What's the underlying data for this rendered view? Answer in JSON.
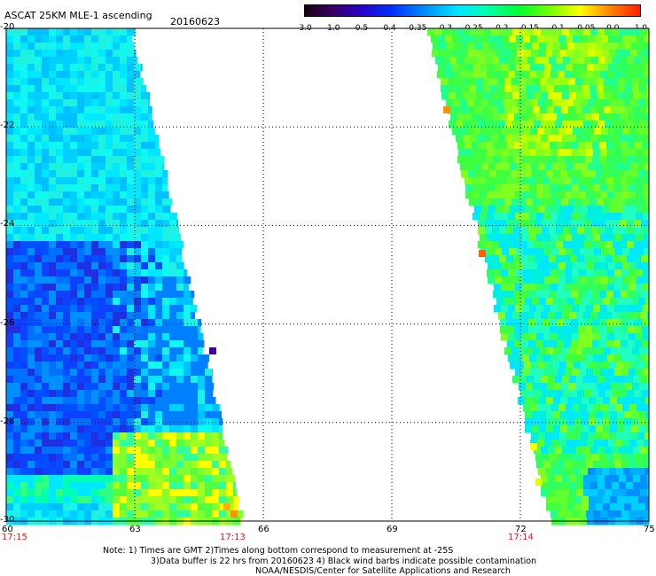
{
  "header": {
    "title": "ASCAT 25KM MLE-1 ascending",
    "date": "20160623"
  },
  "colorbar": {
    "ticks": [
      "-3.0",
      "-1.0",
      "-0.5",
      "-0.4",
      "-0.35",
      "-0.3",
      "-0.25",
      "-0.2",
      "-0.15",
      "-0.1",
      "-0.05",
      "0.0",
      "1.0"
    ],
    "colors": [
      "#1a0010",
      "#3a0060",
      "#2a00c0",
      "#0030ff",
      "#0090ff",
      "#00e8ff",
      "#00ffb0",
      "#00ff30",
      "#80ff00",
      "#ffff00",
      "#ff9000",
      "#ff2000"
    ]
  },
  "axes": {
    "y_labels": [
      "-20",
      "-22",
      "-24",
      "-26",
      "-28",
      "-30"
    ],
    "x_labels": [
      "60",
      "63",
      "66",
      "69",
      "72",
      "75"
    ],
    "time_labels": [
      "17:15",
      "17:13",
      "17:14"
    ]
  },
  "notes": [
    "Note: 1) Times are GMT 2)Times along bottom correspond to measurement at -25S",
    "3)Data buffer is 22 hrs from 20160623 4) Black wind barbs indicate possible contamination",
    "NOAA/NESDIS/Center for Satellite Applications and Research"
  ],
  "map": {
    "lon_range": [
      60,
      75
    ],
    "lat_range": [
      -20,
      -30
    ],
    "swath_left_edge_lon": [
      62.3,
      64.1
    ],
    "swath_right_start_lon": [
      70.0,
      71.9
    ]
  }
}
